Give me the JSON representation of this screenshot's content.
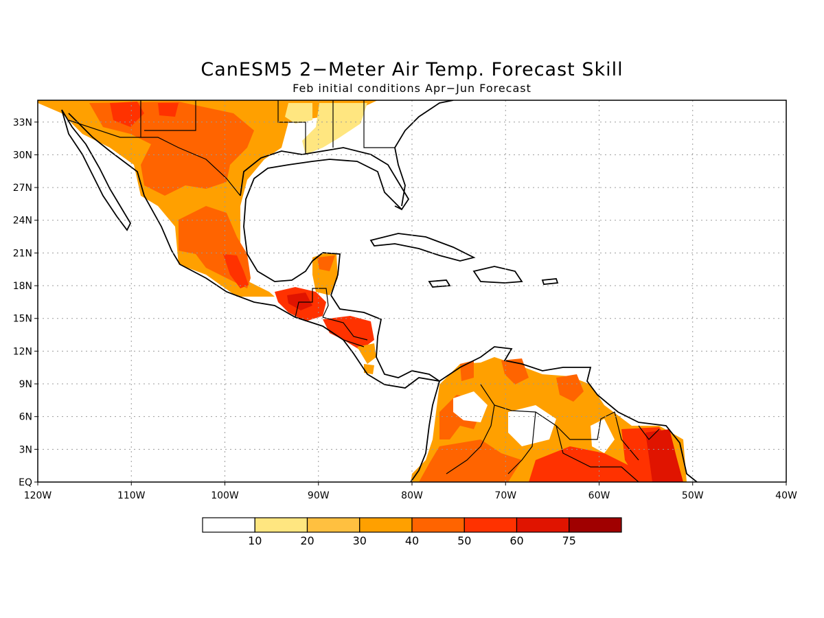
{
  "map": {
    "title": "CanESM5 2−Meter Air Temp. Forecast Skill",
    "subtitle": "Feb initial conditions  Apr−Jun Forecast",
    "lon_range": [
      -120,
      -40
    ],
    "lat_range": [
      0,
      35
    ],
    "lon_ticks": [
      {
        "value": -120,
        "label": "120W"
      },
      {
        "value": -110,
        "label": "110W"
      },
      {
        "value": -100,
        "label": "100W"
      },
      {
        "value": -90,
        "label": "90W"
      },
      {
        "value": -80,
        "label": "80W"
      },
      {
        "value": -70,
        "label": "70W"
      },
      {
        "value": -60,
        "label": "60W"
      },
      {
        "value": -50,
        "label": "50W"
      },
      {
        "value": -40,
        "label": "40W"
      }
    ],
    "lat_ticks": [
      {
        "value": 0,
        "label": "EQ"
      },
      {
        "value": 3,
        "label": "3N"
      },
      {
        "value": 6,
        "label": "6N"
      },
      {
        "value": 9,
        "label": "9N"
      },
      {
        "value": 12,
        "label": "12N"
      },
      {
        "value": 15,
        "label": "15N"
      },
      {
        "value": 18,
        "label": "18N"
      },
      {
        "value": 21,
        "label": "21N"
      },
      {
        "value": 24,
        "label": "24N"
      },
      {
        "value": 27,
        "label": "27N"
      },
      {
        "value": 30,
        "label": "30N"
      },
      {
        "value": 33,
        "label": "33N"
      }
    ],
    "grid": true
  },
  "colorbar": {
    "levels": [
      "10",
      "20",
      "30",
      "40",
      "50",
      "60",
      "75"
    ],
    "colors": [
      "#ffffff",
      "#ffe680",
      "#ffc040",
      "#ffa000",
      "#ff6400",
      "#ff3200",
      "#e01400",
      "#a00000"
    ]
  }
}
